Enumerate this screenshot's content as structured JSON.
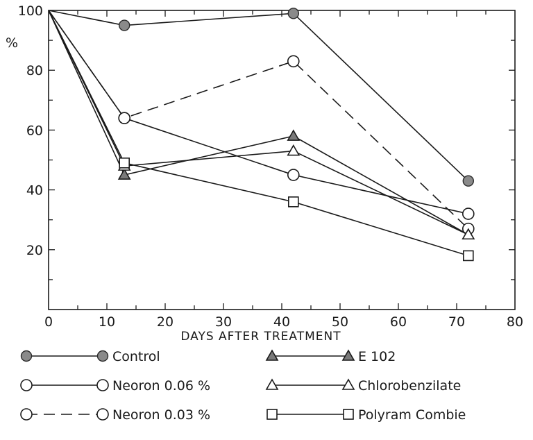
{
  "chart_data": {
    "type": "line",
    "title": "",
    "xlabel": "DAYS AFTER TREATMENT",
    "ylabel": "%",
    "xlim": [
      0,
      80
    ],
    "ylim": [
      0,
      100
    ],
    "x_ticks": [
      0,
      10,
      20,
      30,
      40,
      50,
      60,
      70,
      80
    ],
    "y_ticks": [
      20,
      40,
      60,
      80,
      100
    ],
    "y_tick_labels": [
      "20",
      "40",
      "60",
      "80",
      "100"
    ],
    "y_unit_label": "%",
    "grid": false,
    "legend_position": "below",
    "series": [
      {
        "name": "Control",
        "marker": "circle-filled",
        "dash": "solid",
        "x": [
          0,
          13,
          42,
          72
        ],
        "y": [
          100,
          95,
          99,
          43
        ]
      },
      {
        "name": "Neoron 0.06 %",
        "marker": "circle-open",
        "dash": "solid",
        "x": [
          0,
          13,
          42,
          72
        ],
        "y": [
          100,
          64,
          45,
          32
        ]
      },
      {
        "name": "Neoron 0.03 %",
        "marker": "circle-open",
        "dash": "dashed",
        "x": [
          0,
          13,
          42,
          72
        ],
        "y": [
          100,
          64,
          83,
          27
        ]
      },
      {
        "name": "E 102",
        "marker": "triangle-filled",
        "dash": "solid",
        "x": [
          0,
          13,
          42,
          72
        ],
        "y": [
          100,
          45,
          58,
          25
        ]
      },
      {
        "name": "Chlorobenzilate",
        "marker": "triangle-open",
        "dash": "solid",
        "x": [
          0,
          13,
          42,
          72
        ],
        "y": [
          100,
          48,
          53,
          25
        ]
      },
      {
        "name": "Polyram Combie",
        "marker": "square-open",
        "dash": "solid",
        "x": [
          0,
          13,
          42,
          72
        ],
        "y": [
          100,
          49,
          36,
          18
        ]
      }
    ]
  }
}
